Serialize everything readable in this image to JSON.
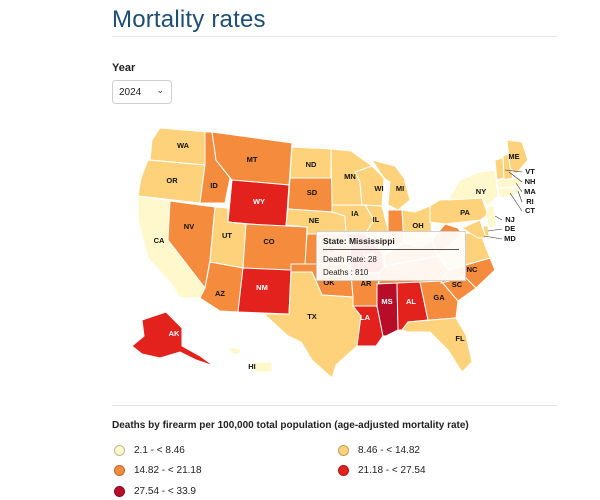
{
  "title": "Mortality rates",
  "year_filter": {
    "label": "Year",
    "selected": "2024"
  },
  "tooltip": {
    "title": "State: Mississippi",
    "rate_line": "Death Rate: 28",
    "deaths_line": "Deaths : 810"
  },
  "legend": {
    "title": "Deaths by firearm per 100,000 total population (age-adjusted mortality rate)",
    "bins": [
      {
        "label": "2.1 - < 8.46",
        "color": "#fff8cc"
      },
      {
        "label": "8.46 - < 14.82",
        "color": "#fed27b"
      },
      {
        "label": "14.82 - < 21.18",
        "color": "#f58b3d"
      },
      {
        "label": "21.18 - < 27.54",
        "color": "#e3221e"
      },
      {
        "label": "27.54 - < 33.9",
        "color": "#b70d28"
      }
    ]
  },
  "states": [
    {
      "abbr": "WA",
      "bin": 1
    },
    {
      "abbr": "OR",
      "bin": 1
    },
    {
      "abbr": "CA",
      "bin": 0
    },
    {
      "abbr": "ID",
      "bin": 2
    },
    {
      "abbr": "NV",
      "bin": 2
    },
    {
      "abbr": "MT",
      "bin": 2
    },
    {
      "abbr": "WY",
      "bin": 3
    },
    {
      "abbr": "UT",
      "bin": 1
    },
    {
      "abbr": "CO",
      "bin": 2
    },
    {
      "abbr": "AZ",
      "bin": 2
    },
    {
      "abbr": "NM",
      "bin": 3
    },
    {
      "abbr": "ND",
      "bin": 1
    },
    {
      "abbr": "SD",
      "bin": 2
    },
    {
      "abbr": "NE",
      "bin": 1
    },
    {
      "abbr": "KS",
      "bin": 2
    },
    {
      "abbr": "OK",
      "bin": 2
    },
    {
      "abbr": "TX",
      "bin": 1
    },
    {
      "abbr": "MN",
      "bin": 1
    },
    {
      "abbr": "IA",
      "bin": 1
    },
    {
      "abbr": "MO",
      "bin": 3
    },
    {
      "abbr": "AR",
      "bin": 2
    },
    {
      "abbr": "LA",
      "bin": 3
    },
    {
      "abbr": "WI",
      "bin": 1
    },
    {
      "abbr": "IL",
      "bin": 1
    },
    {
      "abbr": "MI",
      "bin": 1
    },
    {
      "abbr": "IN",
      "bin": 2
    },
    {
      "abbr": "OH",
      "bin": 1
    },
    {
      "abbr": "KY",
      "bin": 2
    },
    {
      "abbr": "TN",
      "bin": 2
    },
    {
      "abbr": "MS",
      "bin": 4
    },
    {
      "abbr": "AL",
      "bin": 3
    },
    {
      "abbr": "GA",
      "bin": 2
    },
    {
      "abbr": "FL",
      "bin": 1
    },
    {
      "abbr": "SC",
      "bin": 2
    },
    {
      "abbr": "NC",
      "bin": 2
    },
    {
      "abbr": "VA",
      "bin": 1
    },
    {
      "abbr": "WV",
      "bin": 2
    },
    {
      "abbr": "PA",
      "bin": 1
    },
    {
      "abbr": "NY",
      "bin": 0
    },
    {
      "abbr": "VT",
      "bin": 1
    },
    {
      "abbr": "NH",
      "bin": 1
    },
    {
      "abbr": "ME",
      "bin": 1
    },
    {
      "abbr": "MA",
      "bin": 0
    },
    {
      "abbr": "RI",
      "bin": 0
    },
    {
      "abbr": "CT",
      "bin": 0
    },
    {
      "abbr": "NJ",
      "bin": 0
    },
    {
      "abbr": "DE",
      "bin": 1
    },
    {
      "abbr": "MD",
      "bin": 1
    },
    {
      "abbr": "AK",
      "bin": 3
    },
    {
      "abbr": "HI",
      "bin": 0
    }
  ]
}
